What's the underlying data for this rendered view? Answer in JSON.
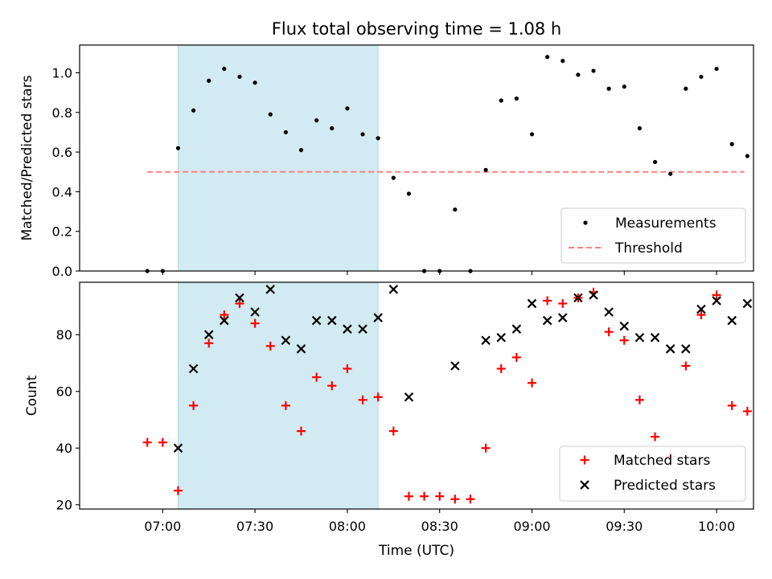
{
  "colors": {
    "shade": "#add8e6",
    "threshold": "#ff7f7f",
    "matched": "#ff0000",
    "predicted": "#000000",
    "measurement": "#000000"
  },
  "chart_data": [
    {
      "type": "scatter",
      "title": "Flux total observing time = 1.08 h",
      "xlabel": "",
      "ylabel": "Matched/Predicted stars",
      "xlim_minutes_utc": [
        393,
        612
      ],
      "ylim": [
        0,
        1.14
      ],
      "yticks": [
        0.0,
        0.2,
        0.4,
        0.6,
        0.8,
        1.0
      ],
      "ytick_labels": [
        "0.0",
        "0.2",
        "0.4",
        "0.6",
        "0.8",
        "1.0"
      ],
      "shaded_span_minutes_utc": [
        425,
        490
      ],
      "legend": {
        "location": "lower right",
        "entries": [
          "Measurements",
          "Threshold"
        ]
      },
      "threshold": {
        "name": "Threshold",
        "value": 0.5,
        "x_start": 415,
        "x_end": 609
      },
      "series": [
        {
          "name": "Measurements",
          "x": [
            415,
            420,
            425,
            430,
            435,
            440,
            445,
            450,
            455,
            460,
            465,
            470,
            475,
            480,
            485,
            490,
            495,
            500,
            505,
            510,
            515,
            520,
            525,
            530,
            535,
            540,
            545,
            550,
            555,
            560,
            565,
            570,
            575,
            580,
            585,
            590,
            595,
            600,
            605,
            610
          ],
          "y": [
            0.0,
            0.0,
            0.62,
            0.81,
            0.96,
            1.02,
            0.98,
            0.95,
            0.79,
            0.7,
            0.61,
            0.76,
            0.72,
            0.82,
            0.69,
            0.67,
            0.47,
            0.39,
            0.0,
            0.0,
            0.31,
            0.0,
            0.51,
            0.86,
            0.87,
            0.69,
            1.08,
            1.06,
            0.99,
            1.01,
            0.92,
            0.93,
            0.72,
            0.55,
            0.49,
            0.92,
            0.98,
            1.02,
            0.64,
            0.58
          ]
        }
      ]
    },
    {
      "type": "scatter",
      "title": "",
      "xlabel": "Time (UTC)",
      "ylabel": "Count",
      "xlim_minutes_utc": [
        393,
        612
      ],
      "ylim": [
        18.5,
        98.5
      ],
      "yticks": [
        20,
        40,
        60,
        80
      ],
      "ytick_labels": [
        "20",
        "40",
        "60",
        "80"
      ],
      "xticks_minutes_utc": [
        420,
        450,
        480,
        510,
        540,
        570,
        600
      ],
      "xtick_labels": [
        "07:00",
        "07:30",
        "08:00",
        "08:30",
        "09:00",
        "09:30",
        "10:00"
      ],
      "shaded_span_minutes_utc": [
        425,
        490
      ],
      "legend": {
        "location": "lower right",
        "entries": [
          "Matched stars",
          "Predicted stars"
        ]
      },
      "series": [
        {
          "name": "Matched stars",
          "marker": "+",
          "x": [
            415,
            420,
            425,
            430,
            435,
            440,
            445,
            450,
            455,
            460,
            465,
            470,
            475,
            480,
            485,
            490,
            495,
            500,
            505,
            510,
            515,
            520,
            525,
            530,
            535,
            540,
            545,
            550,
            555,
            560,
            565,
            570,
            575,
            580,
            585,
            590,
            595,
            600,
            605,
            610
          ],
          "y": [
            42,
            42,
            25,
            55,
            77,
            87,
            91,
            84,
            76,
            55,
            46,
            65,
            62,
            68,
            57,
            58,
            46,
            23,
            23,
            23,
            22,
            22,
            40,
            68,
            72,
            63,
            92,
            91,
            93,
            95,
            81,
            78,
            57,
            44,
            37,
            69,
            87,
            94,
            55,
            53
          ]
        },
        {
          "name": "Predicted stars",
          "marker": "x",
          "x": [
            425,
            430,
            435,
            440,
            445,
            450,
            455,
            460,
            465,
            470,
            475,
            480,
            485,
            490,
            495,
            500,
            515,
            525,
            530,
            535,
            540,
            545,
            550,
            555,
            560,
            565,
            570,
            575,
            580,
            585,
            590,
            595,
            600,
            605,
            610
          ],
          "y": [
            40,
            68,
            80,
            85,
            93,
            88,
            96,
            78,
            75,
            85,
            85,
            82,
            82,
            86,
            96,
            58,
            69,
            78,
            79,
            82,
            91,
            85,
            86,
            93,
            94,
            88,
            83,
            79,
            79,
            75,
            75,
            89,
            92,
            85,
            91
          ]
        }
      ]
    }
  ]
}
